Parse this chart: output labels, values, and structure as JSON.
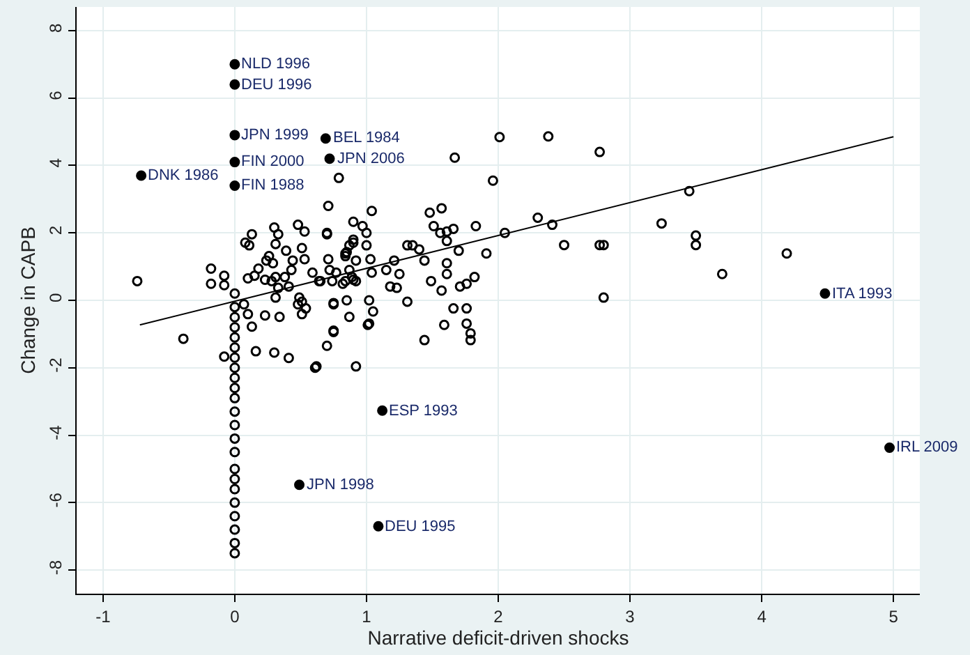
{
  "chart_data": {
    "type": "scatter",
    "xlabel": "Narrative deficit-driven shocks",
    "ylabel": "Change in CAPB",
    "xlim": [
      -1.2,
      5.2
    ],
    "ylim": [
      -8.7,
      8.7
    ],
    "xticks": [
      -1,
      0,
      1,
      2,
      3,
      4,
      5
    ],
    "yticks": [
      -8,
      -6,
      -4,
      -2,
      0,
      2,
      4,
      6,
      8
    ],
    "grid": true,
    "legend": false,
    "marker": "circle",
    "series": [
      {
        "type": "scatter",
        "color": "#000000",
        "x": [
          2.01,
          2.38,
          2.77,
          1.67,
          0.79,
          1.96,
          3.45,
          0.71,
          1.04,
          1.48,
          1.57,
          2.3,
          2.41,
          3.24,
          3.5,
          3.5,
          2.05,
          2.5,
          2.77,
          2.8,
          4.19,
          3.7,
          2.8,
          1.83,
          1.51,
          1.56,
          1.61,
          1.66,
          1.61,
          1.7,
          1.91,
          1.31,
          1.35,
          1.4,
          1.44,
          1.61,
          1.61,
          1.82,
          1.49,
          1.57,
          1.71,
          1.76,
          1.31,
          1.66,
          1.76,
          1.59,
          1.76,
          1.79,
          1.79,
          1.44,
          0.92,
          0.7,
          0.75,
          0.87,
          1.02,
          1.05,
          1.02,
          0.75,
          0.85,
          1.21,
          1.15,
          1.25,
          1.18,
          1.23,
          1.04,
          1.03,
          0.92,
          0.9,
          1.0,
          1.0,
          0.97,
          0.9,
          0.7,
          0.85,
          0.84,
          0.71,
          0.72,
          0.77,
          0.65,
          0.82,
          0.92,
          0.89,
          0.62,
          -0.74,
          -0.39,
          -0.08,
          -0.18,
          -0.18,
          -0.08,
          -0.08,
          0.13,
          0.08,
          0.11,
          0.3,
          0.33,
          0.31,
          0.39,
          0.48,
          0.53,
          0.51,
          0.53,
          0.7,
          0.24,
          0.26,
          0.29,
          0.31,
          0.28,
          0.33,
          0.31,
          0.1,
          0.15,
          0.18,
          0.23,
          0.38,
          0.41,
          0.44,
          0.43,
          0.49,
          0.51,
          0.54,
          0.51,
          0.48,
          0.07,
          0.1,
          0.13,
          0.23,
          0.34,
          0.59,
          0.64,
          0.74,
          0.84,
          0.87,
          0.9,
          0.84,
          0.87,
          0.9,
          0.75,
          1.01,
          0.16,
          0.3,
          0.41,
          0.61,
          0.75,
          0,
          0,
          0,
          0,
          0,
          0,
          0,
          0,
          0,
          0,
          0,
          0,
          0,
          0,
          0,
          0,
          0,
          0,
          0,
          0,
          0,
          0,
          0
        ],
        "values": [
          4.84,
          4.86,
          4.4,
          4.23,
          3.63,
          3.55,
          3.24,
          2.8,
          2.65,
          2.6,
          2.73,
          2.45,
          2.24,
          2.28,
          1.92,
          1.64,
          2.0,
          1.64,
          1.64,
          1.64,
          1.39,
          0.78,
          0.08,
          2.2,
          2.2,
          2.0,
          2.04,
          2.12,
          1.76,
          1.47,
          1.39,
          1.63,
          1.63,
          1.51,
          1.18,
          1.1,
          0.78,
          0.69,
          0.57,
          0.29,
          0.41,
          0.49,
          -0.04,
          -0.24,
          -0.24,
          -0.73,
          -0.69,
          -0.98,
          -1.18,
          -1.18,
          -1.96,
          -1.35,
          -0.94,
          -0.49,
          0,
          -0.33,
          -0.69,
          -0.12,
          0,
          1.18,
          0.9,
          0.78,
          0.41,
          0.37,
          0.82,
          1.22,
          1.18,
          1.71,
          1.63,
          2.0,
          2.2,
          2.33,
          2.0,
          1.43,
          1.31,
          1.22,
          0.9,
          0.82,
          0.57,
          0.49,
          0.57,
          0.69,
          -1.96,
          0.57,
          -1.14,
          -1.67,
          0.94,
          0.49,
          0.73,
          0.45,
          1.96,
          1.71,
          1.63,
          2.16,
          1.96,
          1.67,
          1.47,
          2.24,
          2.04,
          1.55,
          1.22,
          1.96,
          1.18,
          1.31,
          1.1,
          0.69,
          0.57,
          0.37,
          0.08,
          0.65,
          0.73,
          0.94,
          0.61,
          0.69,
          0.41,
          1.18,
          0.9,
          0.08,
          -0.04,
          -0.24,
          -0.41,
          -0.12,
          -0.12,
          -0.41,
          -0.78,
          -0.45,
          -0.49,
          0.82,
          0.57,
          0.57,
          0.57,
          0.9,
          0.61,
          1.39,
          1.63,
          1.8,
          -0.08,
          -0.73,
          -1.51,
          -1.55,
          -1.71,
          -2.0,
          -0.9,
          0.2,
          -0.2,
          -0.5,
          -0.8,
          -1.1,
          -1.4,
          -1.7,
          -2.0,
          -2.3,
          -2.6,
          -2.9,
          -3.3,
          -3.7,
          -4.1,
          -4.5,
          -5.0,
          -5.3,
          -5.6,
          -6.0,
          -6.4,
          -6.8,
          -7.2,
          -7.5
        ]
      },
      {
        "type": "scatter",
        "color": "#000000",
        "x": [
          0,
          0,
          0,
          0.69,
          0,
          0.72,
          -0.71,
          0,
          4.48,
          4.97,
          1.12,
          0.49,
          1.09
        ],
        "values": [
          7.0,
          6.4,
          4.9,
          4.8,
          4.1,
          4.2,
          3.7,
          3.4,
          0.2,
          -4.37,
          -3.27,
          -5.47,
          -6.7
        ]
      },
      {
        "type": "line",
        "marker": "none",
        "color": "#000000",
        "x": [
          -0.72,
          5.0
        ],
        "values": [
          -0.73,
          4.85
        ]
      }
    ],
    "annotations": [
      {
        "text": "NLD 1996",
        "x": 0,
        "y": 7.0
      },
      {
        "text": "DEU 1996",
        "x": 0,
        "y": 6.4
      },
      {
        "text": "JPN 1999",
        "x": 0,
        "y": 4.9
      },
      {
        "text": "BEL 1984",
        "x": 0.69,
        "y": 4.8
      },
      {
        "text": "FIN 2000",
        "x": 0,
        "y": 4.1
      },
      {
        "text": "JPN 2006",
        "x": 0.72,
        "y": 4.2
      },
      {
        "text": "DNK 1986",
        "x": -0.71,
        "y": 3.7
      },
      {
        "text": "FIN 1988",
        "x": 0,
        "y": 3.4
      },
      {
        "text": "ITA 1993",
        "x": 4.48,
        "y": 0.2
      },
      {
        "text": "IRL 2009",
        "x": 4.97,
        "y": -4.37
      },
      {
        "text": "ESP 1993",
        "x": 1.12,
        "y": -3.27
      },
      {
        "text": "JPN 1998",
        "x": 0.49,
        "y": -5.47
      },
      {
        "text": "DEU 1995",
        "x": 1.09,
        "y": -6.7
      }
    ]
  }
}
